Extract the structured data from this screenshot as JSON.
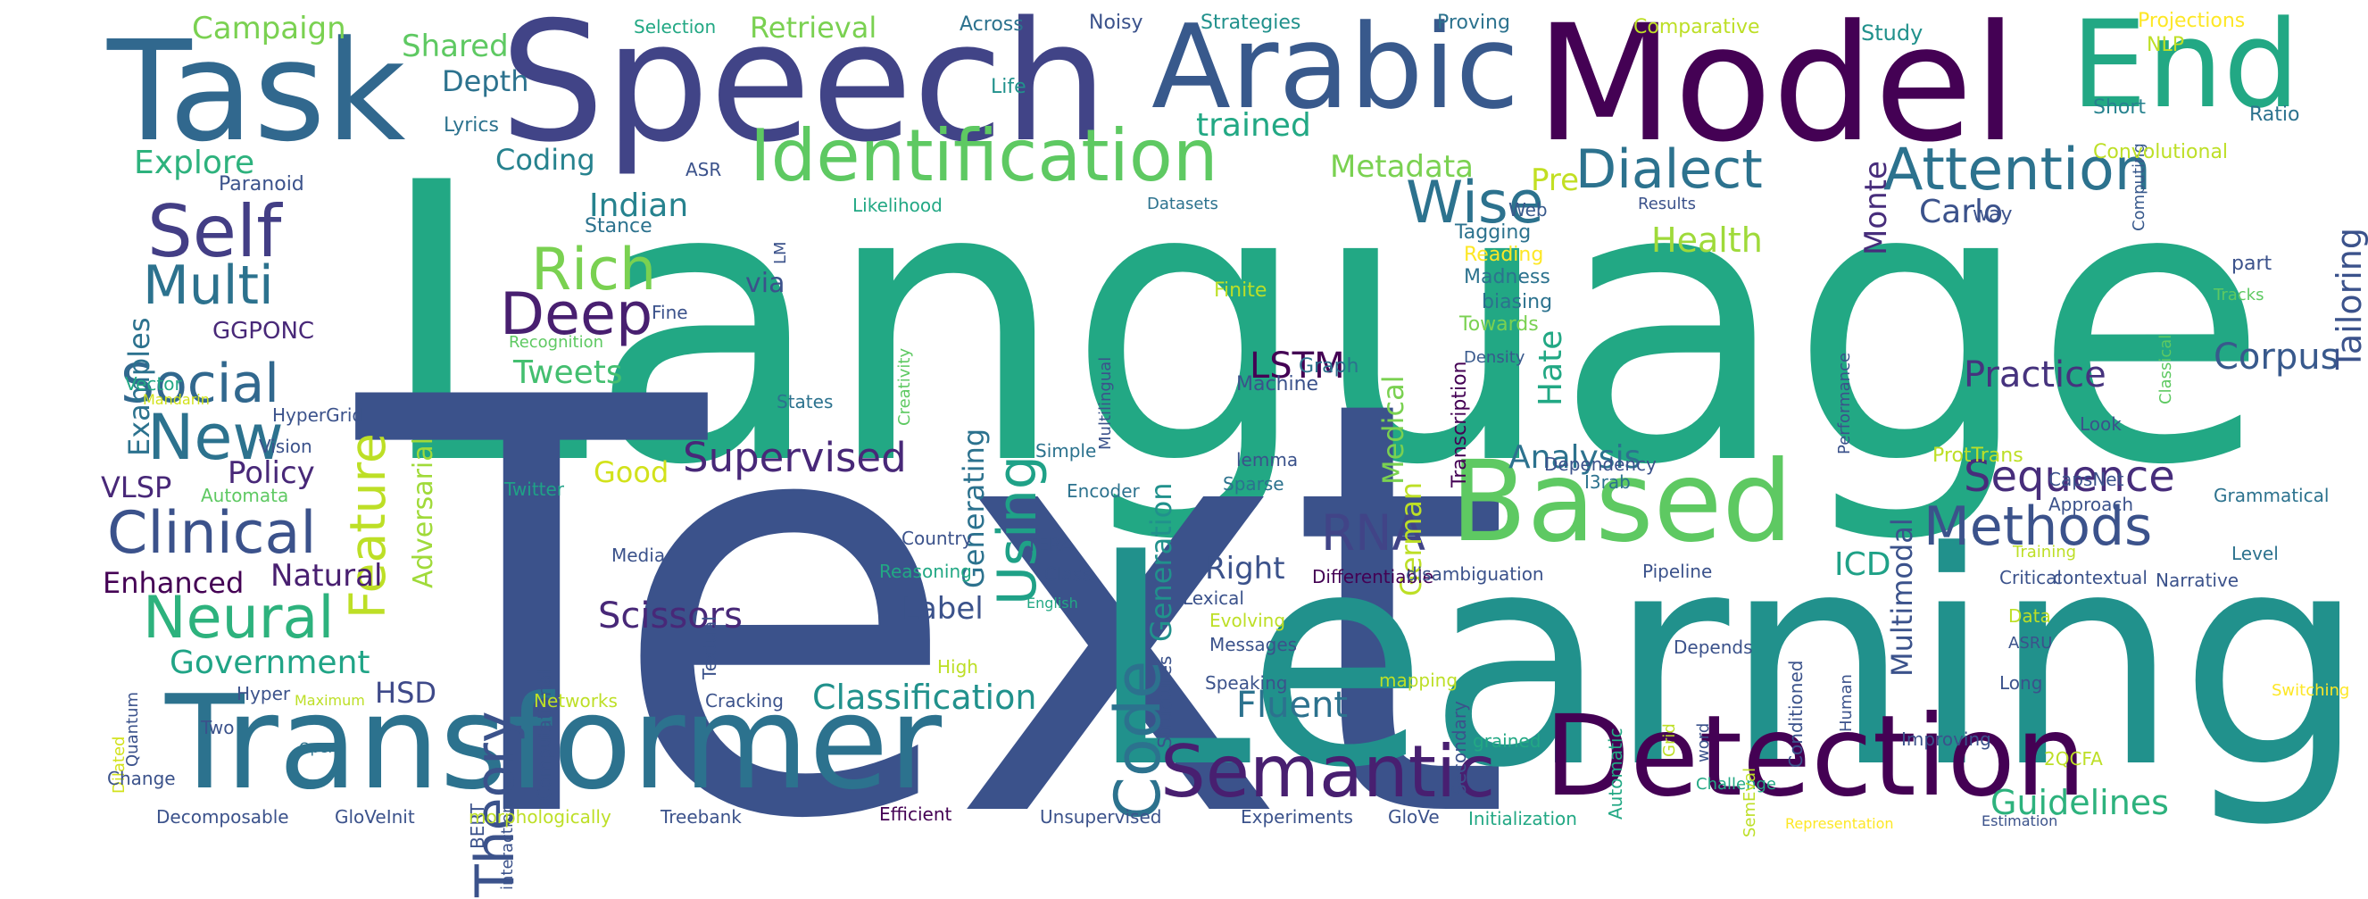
{
  "words": [
    {
      "text": "Language",
      "color": "#22a884"
    },
    {
      "text": "Text",
      "color": "#3b528b"
    },
    {
      "text": "Learning",
      "color": "#21918c"
    },
    {
      "text": "Speech",
      "color": "#414487"
    },
    {
      "text": "Model",
      "color": "#440154"
    },
    {
      "text": "Task",
      "color": "#31688e"
    },
    {
      "text": "Transformer",
      "color": "#2c728e"
    },
    {
      "text": "Detection",
      "color": "#440154"
    },
    {
      "text": "Arabic",
      "color": "#38598c"
    },
    {
      "text": "End",
      "color": "#22a884"
    },
    {
      "text": "Based",
      "color": "#5ec962"
    },
    {
      "text": "Identification",
      "color": "#5ec962"
    },
    {
      "text": "Semantic",
      "color": "#481f70"
    },
    {
      "text": "Self",
      "color": "#433e85"
    },
    {
      "text": "Attention",
      "color": "#2c728e"
    },
    {
      "text": "Dialect",
      "color": "#2c728e"
    },
    {
      "text": "Wise",
      "color": "#2c728e"
    },
    {
      "text": "Methods",
      "color": "#3b528b"
    },
    {
      "text": "Neural",
      "color": "#2db27d"
    },
    {
      "text": "Clinical",
      "color": "#3b528b"
    },
    {
      "text": "Social",
      "color": "#31688e"
    },
    {
      "text": "Multi",
      "color": "#2c728e"
    },
    {
      "text": "New",
      "color": "#2c728e"
    },
    {
      "text": "Deep",
      "color": "#481f70"
    },
    {
      "text": "Rich",
      "color": "#7ad151"
    },
    {
      "text": "Theory",
      "color": "#3b528b"
    },
    {
      "text": "RNA",
      "color": "#414487"
    },
    {
      "text": "Code",
      "color": "#2c728e"
    },
    {
      "text": "Using",
      "color": "#1fa187"
    },
    {
      "text": "Feature",
      "color": "#bddf26"
    },
    {
      "text": "Supervised",
      "color": "#482878"
    },
    {
      "text": "Sequence",
      "color": "#472d7b"
    },
    {
      "text": "Fluent",
      "color": "#2c728e"
    },
    {
      "text": "Classification",
      "color": "#21918c"
    },
    {
      "text": "Guidelines",
      "color": "#2db27d"
    },
    {
      "text": "Scissors",
      "color": "#482878"
    },
    {
      "text": "LSTM",
      "color": "#440154"
    },
    {
      "text": "Corpus",
      "color": "#38598c"
    },
    {
      "text": "Practice",
      "color": "#46337e"
    },
    {
      "text": "Government",
      "color": "#20a486"
    },
    {
      "text": "Tweets",
      "color": "#44bf70"
    },
    {
      "text": "Explore",
      "color": "#2db27d"
    },
    {
      "text": "Campaign",
      "color": "#7ad151"
    },
    {
      "text": "Retrieval",
      "color": "#7ad151"
    },
    {
      "text": "Shared",
      "color": "#5ec962"
    },
    {
      "text": "Depth",
      "color": "#2c728e"
    },
    {
      "text": "Coding",
      "color": "#26828e"
    },
    {
      "text": "Metadata",
      "color": "#7ad151"
    },
    {
      "text": "trained",
      "color": "#22a884"
    },
    {
      "text": "Indian",
      "color": "#26828e"
    },
    {
      "text": "Monte",
      "color": "#472d7b"
    },
    {
      "text": "Carlo",
      "color": "#3b528b"
    },
    {
      "text": "Tailoring",
      "color": "#3b528b"
    },
    {
      "text": "Pre",
      "color": "#c2df23"
    },
    {
      "text": "Health",
      "color": "#9fda3a"
    },
    {
      "text": "Hate",
      "color": "#22a884"
    },
    {
      "text": "Medical",
      "color": "#7ad151"
    },
    {
      "text": "German",
      "color": "#bddf26"
    },
    {
      "text": "Generation",
      "color": "#21918c"
    },
    {
      "text": "Generating",
      "color": "#2c728e"
    },
    {
      "text": "Multimodal",
      "color": "#3b528b"
    },
    {
      "text": "Analysis",
      "color": "#2c728e"
    },
    {
      "text": "Policy",
      "color": "#482878"
    },
    {
      "text": "GGPONC",
      "color": "#482878"
    },
    {
      "text": "VLSP",
      "color": "#482878"
    },
    {
      "text": "Enhanced",
      "color": "#440154"
    },
    {
      "text": "Natural",
      "color": "#481f70"
    },
    {
      "text": "Adversarial",
      "color": "#a0da39"
    },
    {
      "text": "Good",
      "color": "#d2e21b"
    },
    {
      "text": "via",
      "color": "#3b528b"
    },
    {
      "text": "Right",
      "color": "#3b528b"
    },
    {
      "text": "Label",
      "color": "#3b528b"
    },
    {
      "text": "ICD",
      "color": "#1fa187"
    },
    {
      "text": "HSD",
      "color": "#3e4989"
    },
    {
      "text": "Examples",
      "color": "#2c728e"
    },
    {
      "text": "Proving",
      "color": "#2c728e"
    },
    {
      "text": "Strategies",
      "color": "#21918c"
    },
    {
      "text": "Noisy",
      "color": "#3b528b"
    },
    {
      "text": "Across",
      "color": "#2c728e"
    },
    {
      "text": "Selection",
      "color": "#22a884"
    },
    {
      "text": "Comparative",
      "color": "#bddf26"
    },
    {
      "text": "Study",
      "color": "#21918c"
    },
    {
      "text": "Projections",
      "color": "#fde725"
    },
    {
      "text": "NLP",
      "color": "#bddf26"
    },
    {
      "text": "Computing",
      "color": "#38598c"
    },
    {
      "text": "Short",
      "color": "#26828e"
    },
    {
      "text": "Ratio",
      "color": "#2c728e"
    },
    {
      "text": "Convolutional",
      "color": "#bddf26"
    },
    {
      "text": "Lyrics",
      "color": "#2c728e"
    },
    {
      "text": "Life",
      "color": "#21918c"
    },
    {
      "text": "ASR",
      "color": "#3b528b"
    },
    {
      "text": "Paranoid",
      "color": "#3b528b"
    },
    {
      "text": "Likelihood",
      "color": "#22a884"
    },
    {
      "text": "Datasets",
      "color": "#2c728e"
    },
    {
      "text": "Results",
      "color": "#3b528b"
    },
    {
      "text": "Web",
      "color": "#38598c"
    },
    {
      "text": "Stance",
      "color": "#2c728e"
    },
    {
      "text": "Tagging",
      "color": "#2c728e"
    },
    {
      "text": "Reading",
      "color": "#fde725"
    },
    {
      "text": "Madness",
      "color": "#2c728e"
    },
    {
      "text": "biasing",
      "color": "#2c728e"
    },
    {
      "text": "Towards",
      "color": "#7ad151"
    },
    {
      "text": "Transcription",
      "color": "#440154"
    },
    {
      "text": "Multilingual",
      "color": "#3b528b"
    },
    {
      "text": "Creativity",
      "color": "#5ec962"
    },
    {
      "text": "LM",
      "color": "#3b528b"
    },
    {
      "text": "Finite",
      "color": "#bddf26"
    },
    {
      "text": "way",
      "color": "#3b528b"
    },
    {
      "text": "part",
      "color": "#3b528b"
    },
    {
      "text": "Tracks",
      "color": "#5ec962"
    },
    {
      "text": "Performance",
      "color": "#3b528b"
    },
    {
      "text": "Classical",
      "color": "#5ec962"
    },
    {
      "text": "Vector",
      "color": "#22a884"
    },
    {
      "text": "Mandarin",
      "color": "#d2e21b"
    },
    {
      "text": "Recognition",
      "color": "#5ec962"
    },
    {
      "text": "Fine",
      "color": "#3b528b"
    },
    {
      "text": "Density",
      "color": "#38598c"
    },
    {
      "text": "States",
      "color": "#2c728e"
    },
    {
      "text": "Graph",
      "color": "#2c728e"
    },
    {
      "text": "Machine",
      "color": "#3b528b"
    },
    {
      "text": "HyperGrid",
      "color": "#3b528b"
    },
    {
      "text": "Vision",
      "color": "#3b528b"
    },
    {
      "text": "Automata",
      "color": "#5ec962"
    },
    {
      "text": "Twitter",
      "color": "#1fa187"
    },
    {
      "text": "Simple",
      "color": "#2c728e"
    },
    {
      "text": "lemma",
      "color": "#3b528b"
    },
    {
      "text": "Sparse",
      "color": "#2c728e"
    },
    {
      "text": "Encoder",
      "color": "#2c728e"
    },
    {
      "text": "Dependency",
      "color": "#3b528b"
    },
    {
      "text": "ProtTrans",
      "color": "#bddf26"
    },
    {
      "text": "I3rab",
      "color": "#2c728e"
    },
    {
      "text": "CapsNet",
      "color": "#3b528b"
    },
    {
      "text": "Look",
      "color": "#3b528b"
    },
    {
      "text": "Grammatical",
      "color": "#2c728e"
    },
    {
      "text": "Approach",
      "color": "#3b528b"
    },
    {
      "text": "Level",
      "color": "#2c728e"
    },
    {
      "text": "Media",
      "color": "#3b528b"
    },
    {
      "text": "Country",
      "color": "#3b528b"
    },
    {
      "text": "TERA",
      "color": "#3b528b"
    },
    {
      "text": "Reasoning",
      "color": "#22a884"
    },
    {
      "text": "Class",
      "color": "#3b528b"
    },
    {
      "text": "Textual",
      "color": "#3b528b"
    },
    {
      "text": "Computational",
      "color": "#3b528b"
    },
    {
      "text": "Differentiable",
      "color": "#440154"
    },
    {
      "text": "disambiguation",
      "color": "#3b528b"
    },
    {
      "text": "Pipeline",
      "color": "#3b528b"
    },
    {
      "text": "Training",
      "color": "#bddf26"
    },
    {
      "text": "Critical",
      "color": "#3b528b"
    },
    {
      "text": "contextual",
      "color": "#3b528b"
    },
    {
      "text": "Narrative",
      "color": "#3b528b"
    },
    {
      "text": "Lexical",
      "color": "#3b528b"
    },
    {
      "text": "English",
      "color": "#22a884"
    },
    {
      "text": "Structures",
      "color": "#3b528b"
    },
    {
      "text": "Evolving",
      "color": "#bddf26"
    },
    {
      "text": "Messages",
      "color": "#3b528b"
    },
    {
      "text": "Speaking",
      "color": "#3b528b"
    },
    {
      "text": "mapping",
      "color": "#bddf26"
    },
    {
      "text": "Secondary",
      "color": "#3b528b"
    },
    {
      "text": "Depends",
      "color": "#3b528b"
    },
    {
      "text": "Conditioned",
      "color": "#3b528b"
    },
    {
      "text": "Human",
      "color": "#3b528b"
    },
    {
      "text": "Grid",
      "color": "#bddf26"
    },
    {
      "text": "word",
      "color": "#3b528b"
    },
    {
      "text": "Data",
      "color": "#bddf26"
    },
    {
      "text": "ASRU",
      "color": "#3b528b"
    },
    {
      "text": "Long",
      "color": "#3b528b"
    },
    {
      "text": "Switching",
      "color": "#fde725"
    },
    {
      "text": "Automatic",
      "color": "#22a884"
    },
    {
      "text": "Quantum",
      "color": "#3b528b"
    },
    {
      "text": "Dilated",
      "color": "#d2e21b"
    },
    {
      "text": "Hyper",
      "color": "#3b528b"
    },
    {
      "text": "Maximum",
      "color": "#bddf26"
    },
    {
      "text": "High",
      "color": "#bddf26"
    },
    {
      "text": "Networks",
      "color": "#bddf26"
    },
    {
      "text": "Cracking",
      "color": "#3b528b"
    },
    {
      "text": "Two",
      "color": "#3b528b"
    },
    {
      "text": "Open",
      "color": "#2c728e"
    },
    {
      "text": "Change",
      "color": "#3b528b"
    },
    {
      "text": "BERT",
      "color": "#3b528b"
    },
    {
      "text": "interaction",
      "color": "#3b528b"
    },
    {
      "text": "Decomposable",
      "color": "#3b528b"
    },
    {
      "text": "GloVeInit",
      "color": "#3b528b"
    },
    {
      "text": "morphologically",
      "color": "#bddf26"
    },
    {
      "text": "Treebank",
      "color": "#3b528b"
    },
    {
      "text": "Efficient",
      "color": "#440154"
    },
    {
      "text": "Unsupervised",
      "color": "#3b528b"
    },
    {
      "text": "Experiments",
      "color": "#3b528b"
    },
    {
      "text": "GloVe",
      "color": "#3b528b"
    },
    {
      "text": "Initialization",
      "color": "#22a884"
    },
    {
      "text": "grained",
      "color": "#22a884"
    },
    {
      "text": "Challenge",
      "color": "#22a884"
    },
    {
      "text": "SemEval",
      "color": "#bddf26"
    },
    {
      "text": "Improving",
      "color": "#3b528b"
    },
    {
      "text": "Representation",
      "color": "#fde725"
    },
    {
      "text": "Estimation",
      "color": "#3b528b"
    },
    {
      "text": "2QCFA",
      "color": "#bddf26"
    }
  ]
}
